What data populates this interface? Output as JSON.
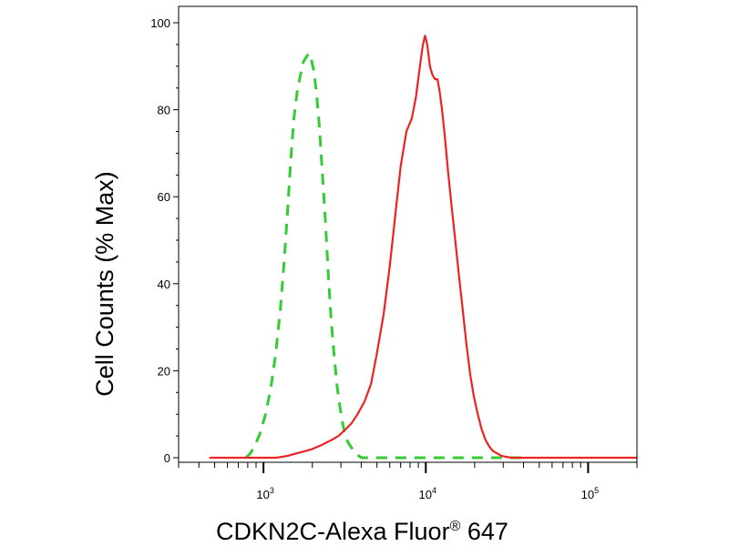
{
  "chart_data": {
    "type": "line",
    "title": "",
    "xlabel": "CDKN2C-Alexa Fluor",
    "xlabel_superscript": "®",
    "xlabel_suffix": " 647",
    "ylabel": "Cell Counts (% Max)",
    "x_scale": "log",
    "xlim": [
      300,
      200000
    ],
    "ylim": [
      0,
      100
    ],
    "y_ticks": [
      0,
      20,
      40,
      60,
      80,
      100
    ],
    "y_tick_labels": [
      "0",
      "20",
      "40",
      "60",
      "80",
      "100"
    ],
    "x_ticks": [
      {
        "value": 1000,
        "base": "10",
        "exponent": "3"
      },
      {
        "value": 10000,
        "base": "10",
        "exponent": "4"
      },
      {
        "value": 100000,
        "base": "10",
        "exponent": "5"
      }
    ],
    "grid": false,
    "legend": "none",
    "series": [
      {
        "style": "dashed",
        "color": "#33cc33",
        "points": [
          [
            780,
            0
          ],
          [
            830,
            1
          ],
          [
            880,
            2.5
          ],
          [
            950,
            5.5
          ],
          [
            1030,
            10
          ],
          [
            1110,
            16
          ],
          [
            1190,
            24
          ],
          [
            1270,
            34
          ],
          [
            1340,
            45
          ],
          [
            1410,
            57
          ],
          [
            1470,
            68
          ],
          [
            1540,
            78
          ],
          [
            1610,
            84
          ],
          [
            1690,
            88
          ],
          [
            1760,
            91
          ],
          [
            1830,
            92
          ],
          [
            1900,
            93
          ],
          [
            1960,
            92
          ],
          [
            2040,
            89
          ],
          [
            2120,
            84
          ],
          [
            2210,
            76
          ],
          [
            2310,
            65
          ],
          [
            2410,
            54
          ],
          [
            2510,
            42
          ],
          [
            2610,
            32
          ],
          [
            2720,
            24
          ],
          [
            2830,
            17
          ],
          [
            2950,
            12
          ],
          [
            3070,
            8
          ],
          [
            3190,
            5
          ],
          [
            3320,
            3.5
          ],
          [
            3460,
            2.5
          ],
          [
            3600,
            1.5
          ],
          [
            3750,
            1
          ],
          [
            3900,
            0.3
          ],
          [
            4050,
            0
          ],
          [
            6000,
            0
          ],
          [
            10000,
            0
          ],
          [
            20000,
            0
          ],
          [
            30000,
            0
          ],
          [
            40000,
            0
          ]
        ]
      },
      {
        "style": "solid",
        "color": "#ee2222",
        "points": [
          [
            470,
            0
          ],
          [
            800,
            0
          ],
          [
            1000,
            0
          ],
          [
            1200,
            0
          ],
          [
            1400,
            0.4
          ],
          [
            1600,
            1
          ],
          [
            1800,
            1.5
          ],
          [
            2000,
            2
          ],
          [
            2300,
            3
          ],
          [
            2600,
            4
          ],
          [
            2900,
            5
          ],
          [
            3200,
            6.5
          ],
          [
            3500,
            8
          ],
          [
            3800,
            10
          ],
          [
            4200,
            13
          ],
          [
            4600,
            17
          ],
          [
            5000,
            24
          ],
          [
            5500,
            33
          ],
          [
            6000,
            44
          ],
          [
            6500,
            56
          ],
          [
            7000,
            67
          ],
          [
            7600,
            75
          ],
          [
            8200,
            78
          ],
          [
            8700,
            83
          ],
          [
            9200,
            90
          ],
          [
            9600,
            95
          ],
          [
            9900,
            97
          ],
          [
            10200,
            95
          ],
          [
            10600,
            90
          ],
          [
            11000,
            88
          ],
          [
            11400,
            87
          ],
          [
            11800,
            87
          ],
          [
            12200,
            84
          ],
          [
            12600,
            80
          ],
          [
            13100,
            74
          ],
          [
            13700,
            66
          ],
          [
            14400,
            58
          ],
          [
            15200,
            50
          ],
          [
            16000,
            42
          ],
          [
            16900,
            34
          ],
          [
            17800,
            26
          ],
          [
            18800,
            19
          ],
          [
            19800,
            14
          ],
          [
            20900,
            10
          ],
          [
            22100,
            6.5
          ],
          [
            23400,
            4
          ],
          [
            24700,
            2.5
          ],
          [
            26000,
            1.5
          ],
          [
            27500,
            1
          ],
          [
            29000,
            0.5
          ],
          [
            31000,
            0.2
          ],
          [
            34000,
            0
          ],
          [
            50000,
            0
          ],
          [
            100000,
            0
          ],
          [
            200000,
            0
          ]
        ]
      }
    ]
  }
}
